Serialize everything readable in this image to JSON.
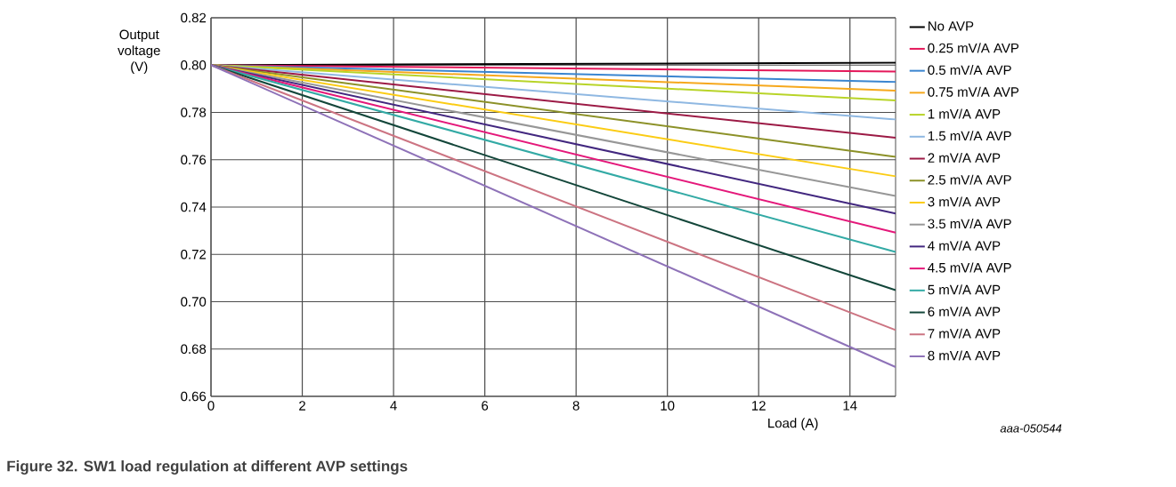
{
  "chart_data": {
    "type": "line",
    "title": "Figure 32.  SW1 load regulation at different AVP settings",
    "xlabel": "Load (A)",
    "ylabel": "Output voltage (V)",
    "annotations": [
      "aaa-050544"
    ],
    "x": [
      0,
      15
    ],
    "xlim": [
      0,
      15
    ],
    "xticks": [
      0,
      2,
      4,
      6,
      8,
      10,
      12,
      14
    ],
    "ylim": [
      0.66,
      0.82
    ],
    "yticks": [
      {
        "value": 0.66,
        "label": "0.66"
      },
      {
        "value": 0.68,
        "label": "0.68"
      },
      {
        "value": 0.7,
        "label": "0.70"
      },
      {
        "value": 0.72,
        "label": "0.72"
      },
      {
        "value": 0.74,
        "label": "0.74"
      },
      {
        "value": 0.76,
        "label": "0.76"
      },
      {
        "value": 0.78,
        "label": "0.78"
      },
      {
        "value": 0.8,
        "label": "0.80"
      },
      {
        "value": 0.82,
        "label": "0.82"
      }
    ],
    "grid": true,
    "legend": "right",
    "marker": "none",
    "line_style": "solid",
    "series": [
      {
        "name": "No AVP",
        "color": "#000000",
        "values": [
          0.8,
          0.801
        ]
      },
      {
        "name": "0.25 mV/A AVP",
        "color": "#e4185a",
        "values": [
          0.8,
          0.7973
        ]
      },
      {
        "name": "0.5 mV/A AVP",
        "color": "#3a85d0",
        "values": [
          0.8,
          0.7929
        ]
      },
      {
        "name": "0.75 mV/A AVP",
        "color": "#f6a81c",
        "values": [
          0.8,
          0.7892
        ]
      },
      {
        "name": "1 mV/A AVP",
        "color": "#b8d428",
        "values": [
          0.8,
          0.7851
        ]
      },
      {
        "name": "1.5 mV/A AVP",
        "color": "#8fb8e2",
        "values": [
          0.8,
          0.777
        ]
      },
      {
        "name": "2 mV/A AVP",
        "color": "#9c1a45",
        "values": [
          0.8,
          0.7693
        ]
      },
      {
        "name": "2.5 mV/A AVP",
        "color": "#8c9128",
        "values": [
          0.8,
          0.7612
        ]
      },
      {
        "name": "3 mV/A AVP",
        "color": "#fbcc14",
        "values": [
          0.8,
          0.753
        ]
      },
      {
        "name": "3.5 mV/A AVP",
        "color": "#979797",
        "values": [
          0.8,
          0.7447
        ]
      },
      {
        "name": "4 mV/A AVP",
        "color": "#42277f",
        "values": [
          0.8,
          0.7373
        ]
      },
      {
        "name": "4.5 mV/A AVP",
        "color": "#e4187a",
        "values": [
          0.8,
          0.7292
        ]
      },
      {
        "name": "5 mV/A AVP",
        "color": "#33aaa5",
        "values": [
          0.8,
          0.721
        ]
      },
      {
        "name": "6 mV/A AVP",
        "color": "#13463a",
        "values": [
          0.8,
          0.7049
        ]
      },
      {
        "name": "7 mV/A AVP",
        "color": "#cc7482",
        "values": [
          0.8,
          0.688
        ]
      },
      {
        "name": "8 mV/A AVP",
        "color": "#8e72b8",
        "values": [
          0.8,
          0.6724
        ]
      }
    ]
  }
}
